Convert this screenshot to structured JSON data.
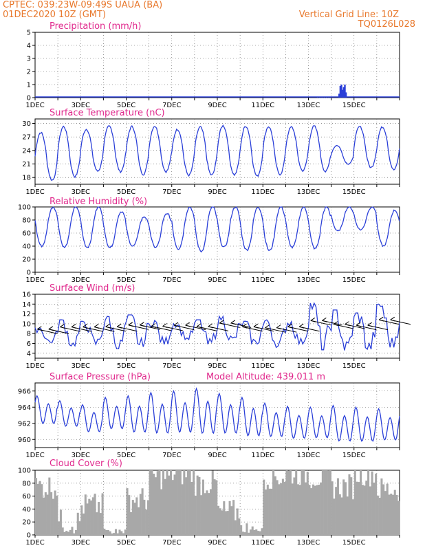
{
  "header": {
    "line1": "CPTEC:  039:23W-09:49S  UAUA (BA)",
    "line2": "01DEC2020 10Z (GMT)",
    "right1": "Vertical Grid Line: 10Z",
    "right2": "TQ0126L028"
  },
  "colors": {
    "header": "#e8782c",
    "title": "#e0288c",
    "line": "#2a3fd8",
    "cloud": "#a8a8a8",
    "wind_arrow": "#000000"
  },
  "x_tick_labels": [
    "1DEC",
    "3DEC",
    "5DEC",
    "7DEC",
    "9DEC",
    "11DEC",
    "13DEC",
    "15DEC"
  ],
  "chart_data": [
    {
      "type": "bar",
      "title": "Precipitation (mm/h)",
      "x_days": [
        12.4,
        12.5,
        12.6,
        12.7,
        12.8,
        12.9,
        13.0
      ],
      "values": [
        0.02,
        0.0,
        0.0,
        0.0,
        0.0,
        0.0,
        0.0
      ],
      "burst_x_days": [
        13.35,
        13.4,
        13.45,
        13.5,
        13.55,
        13.6,
        13.65
      ],
      "burst_values": [
        0.3,
        0.9,
        1.0,
        0.6,
        0.8,
        1.0,
        0.4
      ],
      "ylim": [
        0,
        5
      ],
      "yticks": [
        "0",
        "1",
        "2",
        "3",
        "4",
        "5"
      ]
    },
    {
      "type": "line",
      "title": "Surface Temperature (nC)",
      "peaks_c": [
        28,
        29.3,
        28.7,
        29.4,
        29.3,
        29.4,
        28.7,
        29.2,
        29.5,
        29.4,
        29.3,
        29.2,
        29.4,
        25.1,
        29.3,
        29.2
      ],
      "troughs_c": [
        17.4,
        18.2,
        19.4,
        19.3,
        18.7,
        19.3,
        18.5,
        18.5,
        18.6,
        18.3,
        18.7,
        19.5,
        19.3,
        21,
        20.2,
        19.7
      ],
      "ylim": [
        16.5,
        31
      ],
      "yticks": [
        "18",
        "21",
        "24",
        "27",
        "30"
      ]
    },
    {
      "type": "line",
      "title": "Relative Humidity (%)",
      "peaks_pct": [
        100,
        100,
        100,
        93,
        85,
        90,
        100,
        100,
        100,
        100,
        100,
        100,
        100,
        100,
        100,
        95
      ],
      "troughs_pct": [
        40,
        38,
        38,
        38,
        40,
        38,
        36,
        32,
        38,
        34,
        33,
        38,
        36,
        63,
        65,
        40
      ],
      "ylim": [
        0,
        100
      ],
      "yticks": [
        "0",
        "20",
        "40",
        "60",
        "80",
        "100"
      ]
    },
    {
      "type": "line",
      "title": "Surface Wind (m/s)",
      "values_daily_max": [
        9.2,
        10.8,
        10.5,
        11.5,
        11.8,
        10.8,
        10.2,
        10.8,
        11.5,
        10.5,
        10.8,
        10.5,
        14.2,
        12.8,
        12.2,
        14
      ],
      "values_daily_min": [
        6.2,
        5.5,
        5.8,
        4.9,
        5.3,
        5.8,
        6.8,
        5.7,
        6.4,
        5.9,
        5.2,
        5.9,
        4.7,
        4.6,
        4.8,
        5.2
      ],
      "arrow_direction": "from east-southeast",
      "ylim": [
        3,
        16
      ],
      "yticks": [
        "4",
        "6",
        "8",
        "10",
        "12",
        "14",
        "16"
      ]
    },
    {
      "type": "line",
      "title": "Surface Pressure (hPa)",
      "subtitle": "Model Altitude: 439.011 m",
      "values_daily_max": [
        965.4,
        964.8,
        964.3,
        965.2,
        965.4,
        965.8,
        966.0,
        966.3,
        965.7,
        965.2,
        964.5,
        964.1,
        964.0,
        964.2,
        964.0,
        963.8
      ],
      "values_daily_min": [
        961.5,
        961.2,
        960.5,
        960.8,
        960.3,
        960.1,
        960.2,
        960.0,
        960.1,
        959.8,
        959.8,
        959.6,
        959.7,
        959.2,
        959.2,
        959.4
      ],
      "ylim": [
        959,
        967
      ],
      "yticks": [
        "960",
        "962",
        "964",
        "966"
      ]
    },
    {
      "type": "area",
      "title": "Cloud Cover (%)",
      "daily_cover_pct": [
        75,
        20,
        45,
        5,
        55,
        90,
        95,
        80,
        35,
        10,
        90,
        95,
        90,
        75,
        95,
        70
      ],
      "ylim": [
        0,
        100
      ],
      "yticks": [
        "0",
        "20",
        "40",
        "60",
        "80",
        "100"
      ]
    }
  ]
}
